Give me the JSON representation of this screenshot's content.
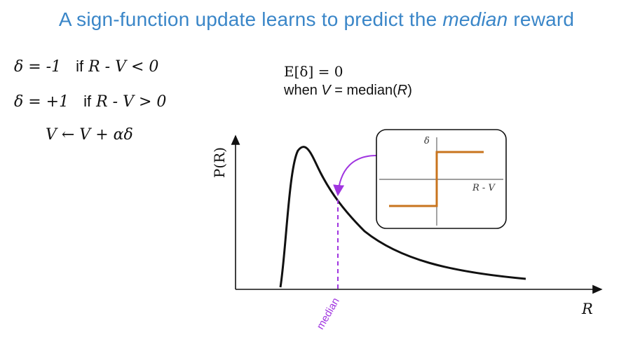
{
  "title": {
    "prefix": "A sign-function update learns to predict the ",
    "emphasis": "median",
    "suffix": " reward"
  },
  "equations": {
    "line1": {
      "lhs": "δ = -1",
      "cond": "if",
      "expr": "R - V < 0"
    },
    "line2": {
      "lhs": "δ = +1",
      "cond": "if",
      "expr": "R - V > 0"
    },
    "line3": "V ← V + αδ"
  },
  "note": {
    "expectation": "E[δ] = 0",
    "when_prefix": "when ",
    "when_var": "V",
    "when_suffix": " = median(",
    "when_arg": "R",
    "when_close": ")"
  },
  "plot": {
    "ylabel": "P(R)",
    "xlabel": "R",
    "marker_label": "median"
  },
  "inset": {
    "ylabel": "δ",
    "xlabel": "R - V"
  },
  "colors": {
    "title": "#3a86c8",
    "median": "#a035e0",
    "step": "#c8741e",
    "curve": "#111111"
  }
}
